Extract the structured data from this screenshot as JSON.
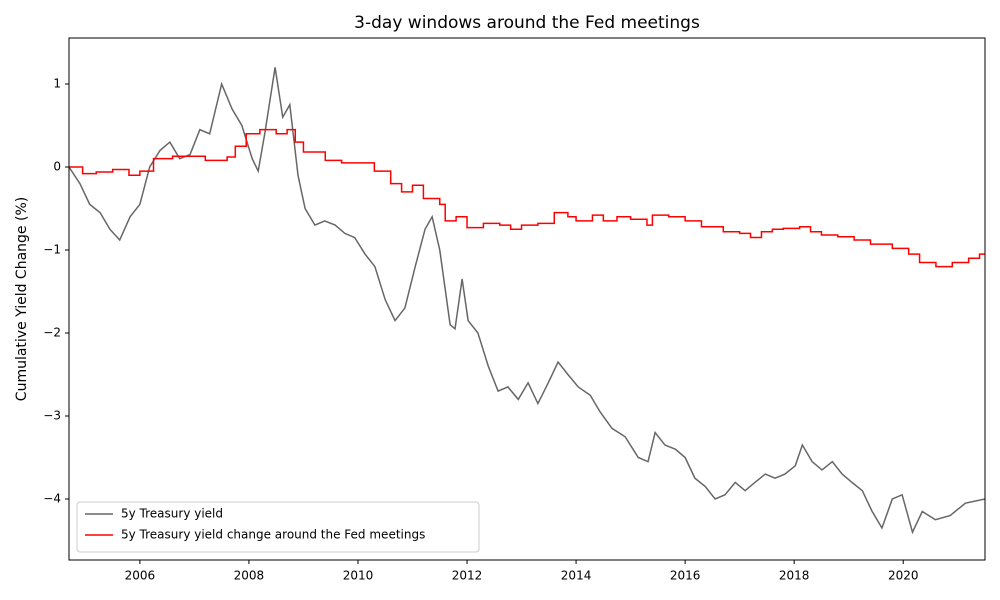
{
  "chart_data": {
    "type": "line",
    "title": "3-day windows around the Fed meetings",
    "y_label": "Cumulative Yield Change (%)",
    "legend": "lower left",
    "xlim": [
      2004.7,
      2021.5
    ],
    "xticks": [
      2006,
      2008,
      2010,
      2012,
      2014,
      2016,
      2018,
      2020
    ],
    "ylim": [
      -4.735,
      1.554
    ],
    "yticks": [
      {
        "value": -4,
        "label": "−4"
      },
      {
        "value": -3,
        "label": "−3"
      },
      {
        "value": -2,
        "label": "−2"
      },
      {
        "value": -1,
        "label": "−1"
      },
      0,
      1
    ],
    "series": [
      {
        "name": "5y Treasury yield",
        "color": "#666666",
        "x": [
          2004.7,
          2004.9,
          2005.08,
          2005.27,
          2005.45,
          2005.63,
          2005.82,
          2006.0,
          2006.18,
          2006.37,
          2006.55,
          2006.73,
          2006.92,
          2007.1,
          2007.28,
          2007.5,
          2007.69,
          2007.87,
          2008.06,
          2008.17,
          2008.29,
          2008.48,
          2008.62,
          2008.75,
          2008.9,
          2009.03,
          2009.21,
          2009.39,
          2009.58,
          2009.76,
          2009.94,
          2010.13,
          2010.31,
          2010.5,
          2010.68,
          2010.86,
          2011.05,
          2011.23,
          2011.36,
          2011.5,
          2011.69,
          2011.78,
          2011.91,
          2012.02,
          2012.2,
          2012.39,
          2012.57,
          2012.75,
          2012.94,
          2013.12,
          2013.3,
          2013.49,
          2013.67,
          2013.85,
          2014.04,
          2014.26,
          2014.44,
          2014.66,
          2014.9,
          2015.14,
          2015.32,
          2015.45,
          2015.63,
          2015.82,
          2016.0,
          2016.18,
          2016.37,
          2016.55,
          2016.73,
          2016.92,
          2017.1,
          2017.28,
          2017.47,
          2017.65,
          2017.83,
          2018.02,
          2018.15,
          2018.33,
          2018.51,
          2018.7,
          2018.88,
          2019.06,
          2019.25,
          2019.43,
          2019.61,
          2019.8,
          2019.98,
          2020.17,
          2020.35,
          2020.59,
          2020.86,
          2021.14,
          2021.5
        ],
        "values": [
          0,
          -0.2,
          -0.45,
          -0.55,
          -0.75,
          -0.88,
          -0.6,
          -0.45,
          0.0,
          0.2,
          0.3,
          0.1,
          0.15,
          0.45,
          0.4,
          1.0,
          0.7,
          0.5,
          0.1,
          -0.05,
          0.4,
          1.2,
          0.6,
          0.75,
          -0.1,
          -0.5,
          -0.7,
          -0.65,
          -0.7,
          -0.8,
          -0.85,
          -1.05,
          -1.2,
          -1.6,
          -1.85,
          -1.7,
          -1.2,
          -0.75,
          -0.6,
          -1.0,
          -1.9,
          -1.95,
          -1.35,
          -1.85,
          -2.0,
          -2.4,
          -2.7,
          -2.65,
          -2.8,
          -2.6,
          -2.85,
          -2.6,
          -2.35,
          -2.5,
          -2.65,
          -2.75,
          -2.95,
          -3.15,
          -3.25,
          -3.5,
          -3.55,
          -3.2,
          -3.35,
          -3.4,
          -3.5,
          -3.75,
          -3.85,
          -4.0,
          -3.95,
          -3.8,
          -3.9,
          -3.8,
          -3.7,
          -3.75,
          -3.7,
          -3.6,
          -3.35,
          -3.55,
          -3.65,
          -3.55,
          -3.7,
          -3.8,
          -3.9,
          -4.15,
          -4.35,
          -4.0,
          -3.95,
          -4.4,
          -4.15,
          -4.25,
          -4.2,
          -4.05,
          -4.0
        ]
      },
      {
        "name": "5y Treasury yield change around the Fed meetings",
        "color": "#ff0000",
        "step": "post",
        "x": [
          2004.7,
          2004.95,
          2005.2,
          2005.5,
          2005.8,
          2006.0,
          2006.25,
          2006.6,
          2007.2,
          2007.6,
          2007.75,
          2007.95,
          2008.2,
          2008.5,
          2008.7,
          2008.85,
          2009.0,
          2009.4,
          2009.7,
          2010.0,
          2010.3,
          2010.6,
          2010.8,
          2011.0,
          2011.2,
          2011.5,
          2011.6,
          2011.8,
          2012.0,
          2012.3,
          2012.6,
          2012.8,
          2013.0,
          2013.3,
          2013.6,
          2013.85,
          2014.0,
          2014.3,
          2014.5,
          2014.75,
          2015.0,
          2015.3,
          2015.4,
          2015.7,
          2016.0,
          2016.3,
          2016.7,
          2017.0,
          2017.2,
          2017.4,
          2017.6,
          2017.8,
          2018.1,
          2018.3,
          2018.5,
          2018.8,
          2019.1,
          2019.4,
          2019.8,
          2020.1,
          2020.3,
          2020.6,
          2020.9,
          2021.2,
          2021.4
        ],
        "values": [
          0,
          -0.08,
          -0.06,
          -0.03,
          -0.1,
          -0.05,
          0.1,
          0.13,
          0.08,
          0.12,
          0.25,
          0.4,
          0.45,
          0.4,
          0.45,
          0.3,
          0.18,
          0.08,
          0.05,
          0.05,
          -0.05,
          -0.2,
          -0.3,
          -0.22,
          -0.38,
          -0.45,
          -0.65,
          -0.6,
          -0.73,
          -0.68,
          -0.7,
          -0.75,
          -0.7,
          -0.68,
          -0.55,
          -0.6,
          -0.65,
          -0.58,
          -0.65,
          -0.6,
          -0.63,
          -0.7,
          -0.58,
          -0.6,
          -0.65,
          -0.72,
          -0.78,
          -0.8,
          -0.85,
          -0.78,
          -0.75,
          -0.74,
          -0.72,
          -0.78,
          -0.82,
          -0.84,
          -0.88,
          -0.93,
          -0.98,
          -1.05,
          -1.15,
          -1.2,
          -1.15,
          -1.1,
          -1.05
        ]
      }
    ]
  }
}
